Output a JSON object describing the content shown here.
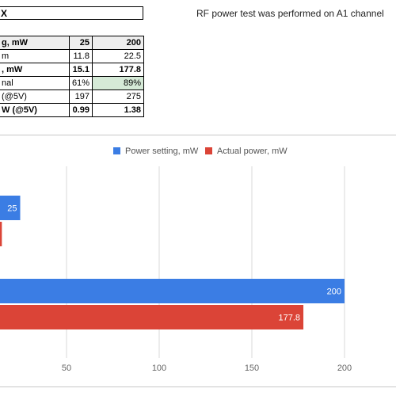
{
  "header": {
    "title": "X",
    "note": "RF power test was performed on A1 channel"
  },
  "table": {
    "rows": [
      [
        "g, mW",
        "25",
        "200"
      ],
      [
        "m",
        "11.8",
        "22.5"
      ],
      [
        ", mW",
        "15.1",
        "177.8"
      ],
      [
        "nal",
        "61%",
        "89%"
      ],
      [
        "(@5V)",
        "197",
        "275"
      ],
      [
        "W (@5V)",
        "0.99",
        "1.38"
      ]
    ]
  },
  "chart_data": {
    "type": "hbar",
    "categories": [
      null,
      null
    ],
    "series": [
      {
        "name": "Power setting, mW",
        "color": "#3b7de4",
        "values": [
          25,
          200
        ]
      },
      {
        "name": "Actual power, mW",
        "color": "#db4437",
        "values": [
          15.1,
          177.8
        ]
      }
    ],
    "xlim": [
      0,
      200
    ],
    "xticks": [
      50,
      100,
      150,
      200
    ],
    "grid": true
  }
}
